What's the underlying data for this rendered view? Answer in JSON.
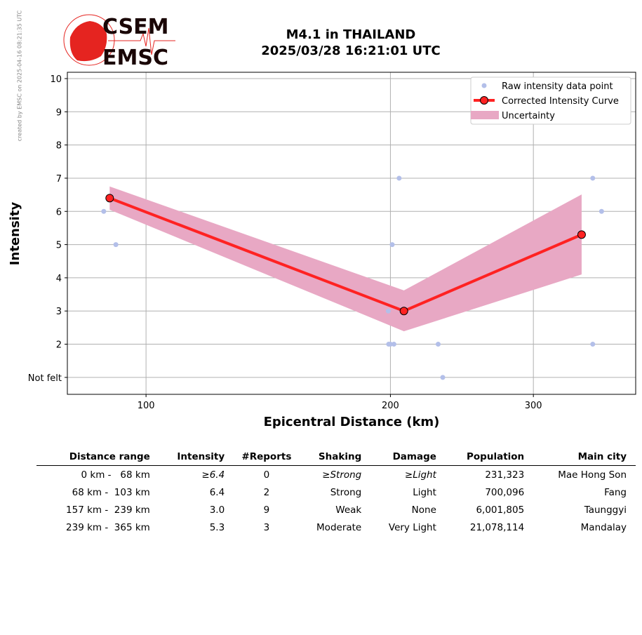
{
  "credit": "created by EMSC on 2025-04-16 08:21:35 UTC",
  "logo": {
    "top": "CSEM",
    "bottom": "EMSC"
  },
  "title": {
    "line1": "M4.1 in THAILAND",
    "line2": "2025/03/28 16:21:01 UTC"
  },
  "colors": {
    "raw": "#b3bfe9",
    "curve": "#ff2222",
    "band": "#e8a8c4"
  },
  "chart_data": {
    "type": "line",
    "xlabel": "Epicentral Distance (km)",
    "ylabel": "Intensity",
    "xscale": "log",
    "xlim": [
      80,
      401
    ],
    "ylim": [
      0.49,
      10.19
    ],
    "xticks": [
      100,
      200,
      300
    ],
    "xtick_labels": [
      "100",
      "200",
      "300"
    ],
    "yticks": [
      1,
      2,
      3,
      4,
      5,
      6,
      7,
      8,
      9,
      10
    ],
    "ytick_labels": [
      "Not felt",
      "2",
      "3",
      "4",
      "5",
      "6",
      "7",
      "8",
      "9",
      "10"
    ],
    "grid": true,
    "legend": {
      "position": "top-right",
      "entries": [
        "Raw intensity data point",
        "Corrected Intensity Curve",
        "Uncertainty"
      ]
    },
    "raw_points": [
      [
        88.7,
        6
      ],
      [
        91.8,
        5
      ],
      [
        205,
        7
      ],
      [
        201,
        5
      ],
      [
        198.8,
        3
      ],
      [
        199,
        2
      ],
      [
        200,
        2
      ],
      [
        202,
        2
      ],
      [
        229,
        2
      ],
      [
        232,
        1
      ],
      [
        355,
        7
      ],
      [
        364,
        6
      ],
      [
        355,
        2
      ]
    ],
    "curve": {
      "x": [
        90.2,
        207.8,
        344
      ],
      "y": [
        6.4,
        3.0,
        5.3
      ]
    },
    "uncertainty": {
      "x": [
        90.2,
        207.8,
        344
      ],
      "upper": [
        6.75,
        3.62,
        6.51
      ],
      "lower": [
        6.05,
        2.39,
        4.1
      ]
    }
  },
  "table": {
    "headers": [
      "Distance range",
      "Intensity",
      "#Reports",
      "Shaking",
      "Damage",
      "Population",
      "Main city"
    ],
    "rows": [
      [
        "0 km -   68 km",
        "≥6.4",
        "0",
        "≥Strong",
        "≥Light",
        "231,323",
        "Mae Hong Son"
      ],
      [
        "68 km -  103 km",
        "6.4",
        "2",
        "Strong",
        "Light",
        "700,096",
        "Fang"
      ],
      [
        "157 km -  239 km",
        "3.0",
        "9",
        "Weak",
        "None",
        "6,001,805",
        "Taunggyi"
      ],
      [
        "239 km -  365 km",
        "5.3",
        "3",
        "Moderate",
        "Very Light",
        "21,078,114",
        "Mandalay"
      ]
    ]
  }
}
